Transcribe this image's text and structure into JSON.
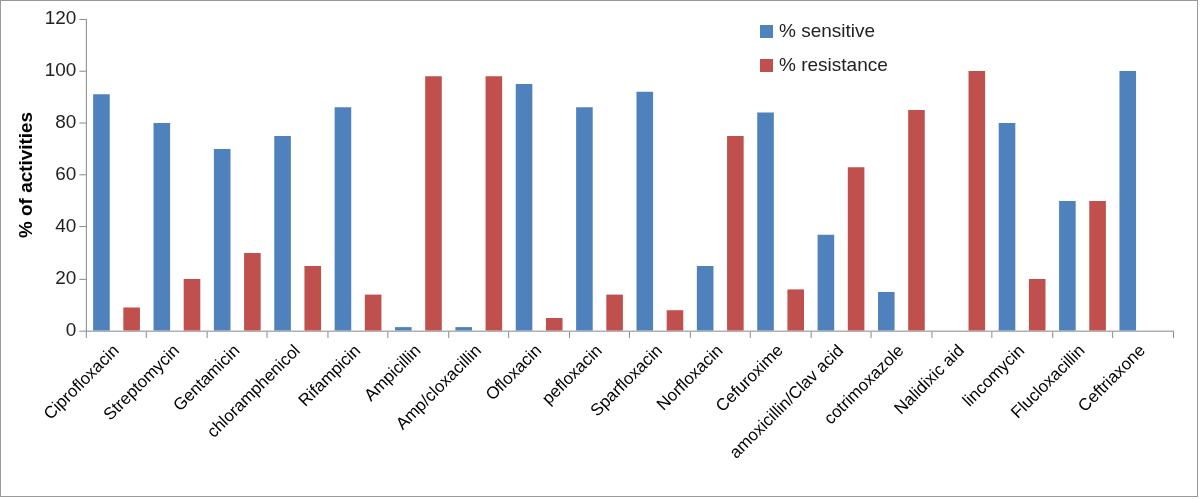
{
  "chart_data": {
    "type": "bar",
    "ylabel": "% of activities",
    "categories": [
      "Ciprofloxacin",
      "Streptomycin",
      "Gentamicin",
      "chloramphenicol",
      "Rifampicin",
      "Ampicillin",
      "Amp/cloxacillin",
      "Ofloxacin",
      "pefloxacin",
      "Sparfloxacin",
      "Norfloxacin",
      "Cefuroxime",
      "amoxicillin/Clav acid",
      "cotrimoxazole",
      "Nalidixic aid",
      "lincomycin",
      "Flucloxacillin",
      "Ceftriaxone"
    ],
    "series": [
      {
        "name": "% sensitive",
        "color": "#4f81bd",
        "values": [
          91,
          80,
          70,
          75,
          86,
          1.5,
          1.5,
          95,
          86,
          92,
          25,
          84,
          37,
          15,
          null,
          80,
          50,
          100
        ]
      },
      {
        "name": "% resistance",
        "color": "#c0504d",
        "values": [
          9,
          20,
          30,
          25,
          14,
          98,
          98,
          5,
          14,
          8,
          75,
          16,
          63,
          85,
          100,
          20,
          50,
          null
        ]
      }
    ],
    "ylim": [
      0,
      120
    ],
    "yticks": [
      0,
      20,
      40,
      60,
      80,
      100,
      120
    ],
    "legend": "top"
  }
}
